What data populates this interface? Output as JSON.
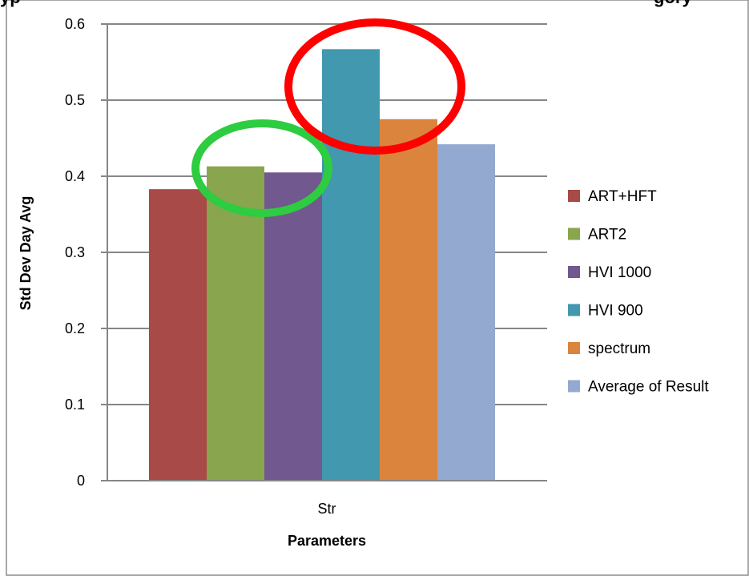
{
  "chart_data": {
    "type": "bar",
    "title_fragment": "yp",
    "title_tail": "gory",
    "categories": [
      "Str"
    ],
    "series": [
      {
        "name": "ART+HFT",
        "values": [
          0.383
        ],
        "color": "#A84A47"
      },
      {
        "name": "ART2",
        "values": [
          0.413
        ],
        "color": "#89A54E"
      },
      {
        "name": "HVI 1000",
        "values": [
          0.405
        ],
        "color": "#71588F"
      },
      {
        "name": "HVI 900",
        "values": [
          0.567
        ],
        "color": "#4198AF"
      },
      {
        "name": "spectrum",
        "values": [
          0.475
        ],
        "color": "#DB843D"
      },
      {
        "name": "Average of Result",
        "values": [
          0.442
        ],
        "color": "#93A9CF"
      }
    ],
    "xlabel": "Parameters",
    "ylabel": "Std Dev Day Avg",
    "ylim": [
      0,
      0.6
    ],
    "yticks": [
      "0",
      "0.1",
      "0.2",
      "0.3",
      "0.4",
      "0.5",
      "0.6"
    ],
    "grid": true,
    "legend_position": "right",
    "annotations": [
      {
        "shape": "ellipse",
        "color": "#2ECC40",
        "marks": [
          "ART2",
          "HVI 1000"
        ]
      },
      {
        "shape": "ellipse",
        "color": "#FF0000",
        "marks": [
          "HVI 900",
          "spectrum"
        ]
      }
    ]
  }
}
